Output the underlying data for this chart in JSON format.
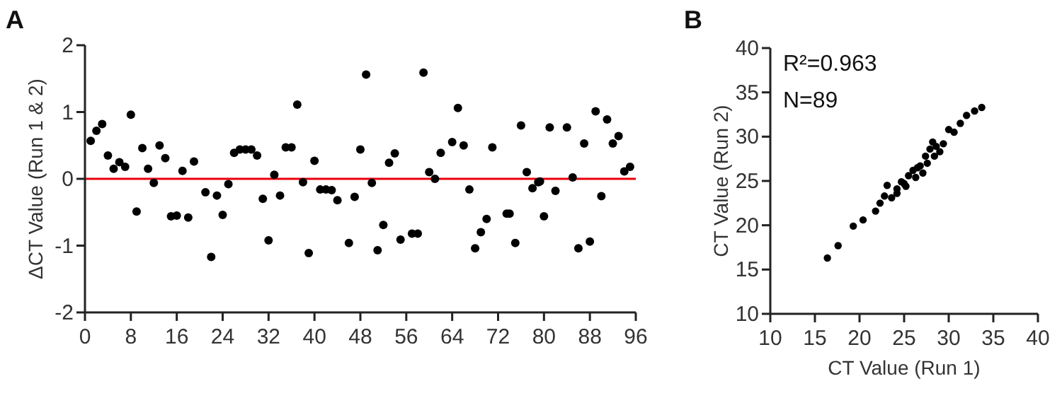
{
  "chart_data": [
    {
      "type": "scatter",
      "title": "A",
      "ylabel": "ΔCT Value (Run 1 & 2)",
      "color": "#000000",
      "marker": "circle",
      "grid": false,
      "xlim": [
        0,
        96
      ],
      "ylim": [
        -2,
        2
      ],
      "xticks": [
        0,
        8,
        16,
        24,
        32,
        40,
        48,
        56,
        64,
        72,
        80,
        88,
        96
      ],
      "yticks": [
        -2,
        -1,
        0,
        1,
        2
      ],
      "ref_lines": [
        {
          "axis": "y",
          "value": 0,
          "color": "#e8000b"
        }
      ],
      "x": [
        1,
        2,
        3,
        4,
        5,
        6,
        7,
        8,
        9,
        10,
        11,
        12,
        13,
        14,
        15,
        16,
        17,
        18,
        19,
        21,
        22,
        23,
        24,
        25,
        26,
        27,
        28,
        29,
        30,
        31,
        32,
        33,
        34,
        35,
        36,
        37,
        38,
        39,
        40,
        41,
        42,
        43,
        44,
        46,
        47,
        48,
        49,
        50,
        51,
        52,
        53,
        54,
        55,
        57,
        58,
        59,
        60,
        61,
        62,
        64,
        65,
        66,
        67,
        68,
        69,
        70,
        71,
        73.5,
        74,
        75,
        76,
        77,
        78,
        79,
        79.3,
        80,
        81,
        82,
        84,
        85,
        86,
        87,
        88,
        89,
        90,
        91,
        92,
        93,
        94,
        95
      ],
      "values": [
        0.57,
        0.72,
        0.82,
        0.35,
        0.15,
        0.25,
        0.18,
        0.96,
        -0.49,
        0.46,
        0.15,
        -0.06,
        0.5,
        0.31,
        -0.56,
        -0.55,
        0.12,
        -0.58,
        0.26,
        -0.2,
        -1.17,
        -0.25,
        -0.54,
        -0.08,
        0.39,
        0.44,
        0.44,
        0.44,
        0.35,
        -0.3,
        -0.92,
        0.06,
        -0.25,
        0.47,
        0.47,
        1.11,
        -0.05,
        -1.11,
        0.27,
        -0.16,
        -0.16,
        -0.17,
        -0.32,
        -0.96,
        -0.27,
        0.44,
        1.56,
        -0.06,
        -1.07,
        -0.69,
        0.24,
        0.38,
        -0.91,
        -0.82,
        -0.82,
        1.59,
        0.1,
        0,
        0.39,
        0.55,
        1.06,
        0.5,
        -0.16,
        -1.04,
        -0.8,
        -0.6,
        0.47,
        -0.52,
        -0.52,
        -0.96,
        0.8,
        0.1,
        -0.14,
        -0.05,
        -0.04,
        -0.56,
        0.77,
        -0.18,
        0.77,
        0.02,
        -1.04,
        0.53,
        -0.94,
        1.01,
        -0.26,
        0.89,
        0.53,
        0.64,
        0.11,
        0.18
      ]
    },
    {
      "type": "scatter",
      "title": "B",
      "xlabel": "CT Value (Run 1)",
      "ylabel": "CT Value (Run 2)",
      "color": "#000000",
      "marker": "circle",
      "grid": false,
      "xlim": [
        10,
        40
      ],
      "ylim": [
        10,
        40
      ],
      "xticks": [
        10,
        15,
        20,
        25,
        30,
        35,
        40
      ],
      "yticks": [
        10,
        15,
        20,
        25,
        30,
        35,
        40
      ],
      "annotations": [
        "R²=0.963",
        "N=89"
      ],
      "x": [
        16.4,
        17.6,
        19.3,
        20.4,
        21.8,
        22.3,
        22.8,
        23.1,
        23.6,
        24.2,
        24.7,
        25.2,
        25.5,
        26,
        26.3,
        26.8,
        27.1,
        27.4,
        27.6,
        27.9,
        28.2,
        28.4,
        29,
        29.4,
        30,
        30.6,
        31.3,
        32,
        32.9,
        33.7,
        24.2,
        25,
        26.5,
        28.6
      ],
      "values": [
        16.3,
        17.7,
        19.9,
        20.6,
        21.6,
        22.5,
        23.3,
        24.5,
        23.1,
        24.1,
        24.9,
        24.4,
        25.6,
        26.2,
        25.4,
        26.7,
        25.9,
        27.8,
        27,
        28.6,
        29.4,
        27.8,
        28.3,
        29.2,
        30.8,
        30.5,
        31.5,
        32.4,
        32.9,
        33.3,
        23.6,
        24.7,
        26.5,
        28.9
      ]
    }
  ]
}
